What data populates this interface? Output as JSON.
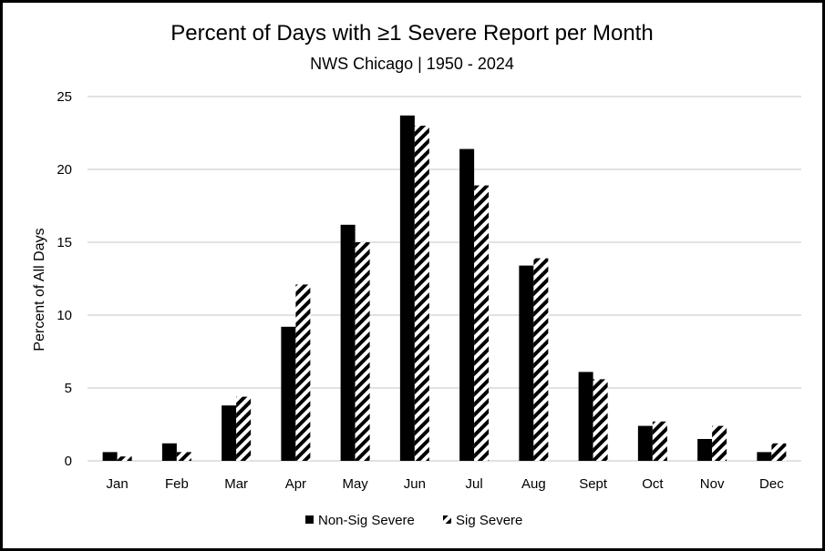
{
  "chart_data": {
    "type": "bar",
    "title": "Percent of Days with ≥1 Severe Report per Month",
    "subtitle": "NWS Chicago | 1950 - 2024",
    "xlabel": "",
    "ylabel": "Percent of All Days",
    "ylim": [
      0,
      25
    ],
    "yticks": [
      0,
      5,
      10,
      15,
      20,
      25
    ],
    "grid": true,
    "legend_position": "bottom",
    "categories": [
      "Jan",
      "Feb",
      "Mar",
      "Apr",
      "May",
      "Jun",
      "Jul",
      "Aug",
      "Sept",
      "Oct",
      "Nov",
      "Dec"
    ],
    "series": [
      {
        "name": "Non-Sig Severe",
        "fill": "solid",
        "color": "#000000",
        "values": [
          0.6,
          1.2,
          3.8,
          9.2,
          16.2,
          23.7,
          21.4,
          13.4,
          6.1,
          2.4,
          1.5,
          0.6
        ]
      },
      {
        "name": "Sig Severe",
        "fill": "diagonal-hatch",
        "color": "#000000",
        "values": [
          0.3,
          0.6,
          4.4,
          12.1,
          15.0,
          23.0,
          18.9,
          13.9,
          5.6,
          2.7,
          2.4,
          1.2
        ]
      }
    ]
  }
}
